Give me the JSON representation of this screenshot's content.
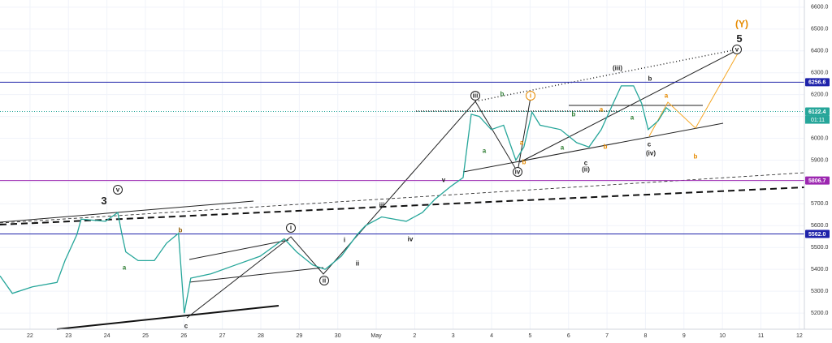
{
  "chart_data": {
    "type": "line",
    "color": "#26a69a",
    "x": [
      -0.78,
      -0.46,
      0.06,
      0.7,
      0.91,
      1.22,
      1.33,
      1.96,
      2.28,
      2.39,
      2.49,
      2.81,
      3.23,
      3.55,
      3.86,
      4.01,
      4.18,
      4.71,
      5.34,
      5.98,
      6.61,
      6.93,
      7.35,
      7.67,
      8.09,
      8.51,
      8.72,
      9.14,
      9.78,
      10.2,
      10.52,
      10.94,
      11.26,
      11.47,
      11.68,
      11.99,
      12.31,
      12.63,
      12.84,
      13.05,
      13.26,
      13.79,
      14.21,
      14.53,
      14.85,
      15.16,
      15.37,
      15.69,
      15.9,
      16.07,
      16.33,
      16.54,
      16.66
    ],
    "values": [
      5370,
      5290,
      5320,
      5340,
      5440,
      5560,
      5630,
      5620,
      5660,
      5560,
      5480,
      5440,
      5440,
      5520,
      5565,
      5200,
      5360,
      5380,
      5420,
      5460,
      5540,
      5480,
      5420,
      5400,
      5460,
      5560,
      5600,
      5640,
      5620,
      5660,
      5720,
      5780,
      5820,
      6110,
      6100,
      6040,
      6060,
      5900,
      5960,
      6120,
      6060,
      6040,
      5980,
      5960,
      6040,
      6160,
      6240,
      6240,
      6160,
      6040,
      6080,
      6140,
      6122.4
    ],
    "xlim": [
      -0.78,
      20.13
    ],
    "xticks": [
      {
        "value": 0,
        "label": "22"
      },
      {
        "value": 1,
        "label": "23"
      },
      {
        "value": 2,
        "label": "24"
      },
      {
        "value": 3,
        "label": "25"
      },
      {
        "value": 4,
        "label": "26"
      },
      {
        "value": 5,
        "label": "27"
      },
      {
        "value": 6,
        "label": "28"
      },
      {
        "value": 7,
        "label": "29"
      },
      {
        "value": 8,
        "label": "30"
      },
      {
        "value": 9,
        "label": "May"
      },
      {
        "value": 10,
        "label": "2"
      },
      {
        "value": 11,
        "label": "3"
      },
      {
        "value": 12,
        "label": "4"
      },
      {
        "value": 13,
        "label": "5"
      },
      {
        "value": 14,
        "label": "6"
      },
      {
        "value": 15,
        "label": "7"
      },
      {
        "value": 16,
        "label": "8"
      },
      {
        "value": 17,
        "label": "9"
      },
      {
        "value": 18,
        "label": "10"
      },
      {
        "value": 19,
        "label": "11"
      },
      {
        "value": 20,
        "label": "12"
      }
    ],
    "ylim": [
      5126,
      6633
    ],
    "yticks": [
      {
        "value": 5200,
        "label": "5200.0"
      },
      {
        "value": 5300,
        "label": "5300.0"
      },
      {
        "value": 5400,
        "label": "5400.0"
      },
      {
        "value": 5500,
        "label": "5500.0"
      },
      {
        "value": 5600,
        "label": "5600.0"
      },
      {
        "value": 5700,
        "label": "5700.0"
      },
      {
        "value": 5800,
        "label": "5800.0"
      },
      {
        "value": 5900,
        "label": "5900.0"
      },
      {
        "value": 6000,
        "label": "6000.0"
      },
      {
        "value": 6100,
        "label": "6100.0"
      },
      {
        "value": 6200,
        "label": "6200.0"
      },
      {
        "value": 6300,
        "label": "6300.0"
      },
      {
        "value": 6400,
        "label": "6400.0"
      },
      {
        "value": 6500,
        "label": "6500.0"
      },
      {
        "value": 6600,
        "label": "6600.0"
      }
    ],
    "grid": true,
    "price_lines": [
      {
        "value": 6256.6,
        "label": "6256.6",
        "color": "#1e22aa",
        "style": "solid"
      },
      {
        "value": 6122.4,
        "label": "6122.4",
        "color": "#26a69a",
        "style": "dotted",
        "countdown": "01:11"
      },
      {
        "value": 5806.7,
        "label": "5806.7",
        "color": "#9c27b0",
        "style": "solid"
      },
      {
        "value": 5562.0,
        "label": "5562.0",
        "color": "#1e22aa",
        "style": "solid"
      }
    ],
    "annotations": [
      {
        "text": "3",
        "color": "#222"
      },
      {
        "text": "v",
        "color": "#222",
        "circled": true
      },
      {
        "text": "a",
        "color": "#2e7d32"
      },
      {
        "text": "b",
        "color": "#8d5a00"
      },
      {
        "text": "c",
        "color": "#222"
      },
      {
        "text": "i",
        "color": "#222",
        "circled": true
      },
      {
        "text": "ii",
        "color": "#222",
        "circled": true
      },
      {
        "text": "i",
        "color": "#222"
      },
      {
        "text": "ii",
        "color": "#222"
      },
      {
        "text": "iii",
        "color": "#222"
      },
      {
        "text": "iv",
        "color": "#222"
      },
      {
        "text": "v",
        "color": "#222"
      },
      {
        "text": "iii",
        "color": "#222",
        "circled": true
      },
      {
        "text": "a",
        "color": "#2e7d32"
      },
      {
        "text": "b",
        "color": "#2e7d32"
      },
      {
        "text": "iv",
        "color": "#222",
        "circled": true
      },
      {
        "text": "b",
        "color": "#e68a00"
      },
      {
        "text": "a",
        "color": "#e68a00"
      },
      {
        "text": "i",
        "color": "#e68a00",
        "circled": true
      },
      {
        "text": "b",
        "color": "#2e7d32"
      },
      {
        "text": "a",
        "color": "#2e7d32"
      },
      {
        "text": "b",
        "color": "#e68a00"
      },
      {
        "text": "a",
        "color": "#e68a00"
      },
      {
        "text": "c",
        "color": "#222"
      },
      {
        "text": "(ii)",
        "color": "#222"
      },
      {
        "text": "(iii)",
        "color": "#222"
      },
      {
        "text": "a",
        "color": "#2e7d32"
      },
      {
        "text": "b",
        "color": "#222"
      },
      {
        "text": "c",
        "color": "#222"
      },
      {
        "text": "(iv)",
        "color": "#222"
      },
      {
        "text": "a",
        "color": "#e68a00"
      },
      {
        "text": "b",
        "color": "#e68a00"
      },
      {
        "text": "(Y)",
        "color": "#e68a00"
      },
      {
        "text": "5",
        "color": "#222"
      },
      {
        "text": "v",
        "color": "#222",
        "circled": true
      }
    ]
  }
}
